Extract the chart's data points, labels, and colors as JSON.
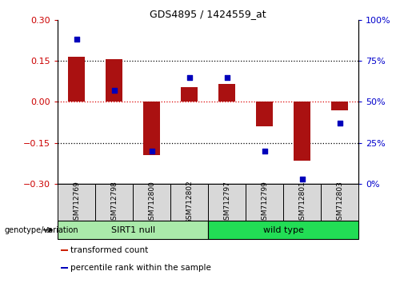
{
  "title": "GDS4895 / 1424559_at",
  "samples": [
    "GSM712769",
    "GSM712798",
    "GSM712800",
    "GSM712802",
    "GSM712797",
    "GSM712799",
    "GSM712801",
    "GSM712803"
  ],
  "transformed_counts": [
    0.165,
    0.155,
    -0.195,
    0.055,
    0.065,
    -0.09,
    -0.215,
    -0.03
  ],
  "percentile_ranks": [
    88,
    57,
    20,
    65,
    65,
    20,
    3,
    37
  ],
  "groups": [
    {
      "label": "SIRT1 null",
      "start": 0,
      "end": 4,
      "color": "#AAEAAA"
    },
    {
      "label": "wild type",
      "start": 4,
      "end": 8,
      "color": "#22DD55"
    }
  ],
  "ylim_left": [
    -0.3,
    0.3
  ],
  "ylim_right": [
    0,
    100
  ],
  "yticks_left": [
    -0.3,
    -0.15,
    0,
    0.15,
    0.3
  ],
  "yticks_right": [
    0,
    25,
    50,
    75,
    100
  ],
  "bar_color": "#AA1111",
  "dot_color": "#0000BB",
  "hline_color": "#DD0000",
  "dotted_color": "#000000",
  "tick_label_color_left": "#CC0000",
  "tick_label_color_right": "#0000CC",
  "genotype_label": "genotype/variation",
  "legend_items": [
    {
      "color": "#CC2200",
      "label": "transformed count"
    },
    {
      "color": "#0000BB",
      "label": "percentile rank within the sample"
    }
  ],
  "sample_box_color": "#D8D8D8",
  "bar_width": 0.45
}
